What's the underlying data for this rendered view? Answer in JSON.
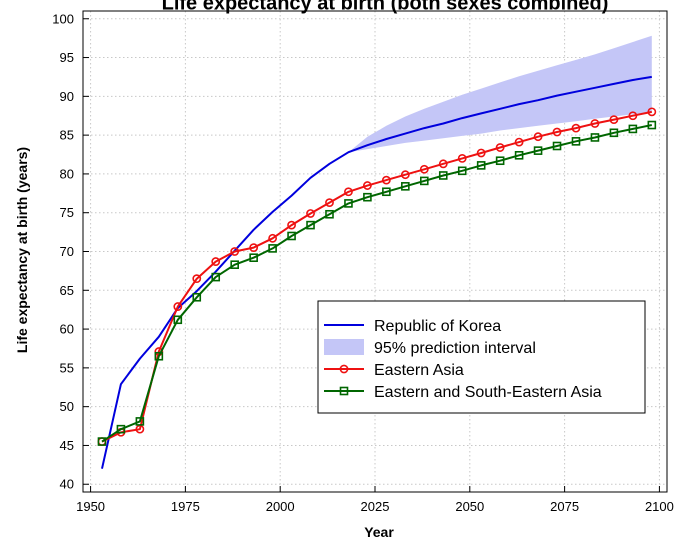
{
  "chart_data": {
    "type": "line",
    "title": "Life expectancy at birth (both sexes combined)",
    "xlabel": "Year",
    "ylabel": "Life expectancy at birth (years)",
    "xlim": [
      1948,
      2102
    ],
    "ylim": [
      39,
      101
    ],
    "xticks": [
      1950,
      1975,
      2000,
      2025,
      2050,
      2075,
      2100
    ],
    "yticks": [
      40,
      45,
      50,
      55,
      60,
      65,
      70,
      75,
      80,
      85,
      90,
      95,
      100
    ],
    "grid": true,
    "legend_position": "lower-right",
    "colors": {
      "korea": "#0000dd",
      "interval": "#c4c6f7",
      "eastern_asia": "#ee1111",
      "es_asia": "#006600"
    },
    "prediction_interval": {
      "name": "95% prediction interval",
      "x": [
        2018,
        2023,
        2028,
        2033,
        2038,
        2043,
        2048,
        2053,
        2058,
        2063,
        2068,
        2073,
        2078,
        2083,
        2088,
        2093,
        2098
      ],
      "lower": [
        82.8,
        83.2,
        83.6,
        84.0,
        84.3,
        84.6,
        84.9,
        85.2,
        85.6,
        85.9,
        86.2,
        86.5,
        86.8,
        87.1,
        87.4,
        87.7,
        88.0
      ],
      "upper": [
        82.8,
        84.8,
        86.2,
        87.4,
        88.4,
        89.3,
        90.2,
        91.0,
        91.8,
        92.6,
        93.3,
        94.0,
        94.7,
        95.4,
        96.2,
        97.0,
        97.8
      ]
    },
    "series": [
      {
        "name": "Republic of Korea",
        "key": "korea",
        "marker": "none",
        "x": [
          1953,
          1958,
          1963,
          1968,
          1973,
          1978,
          1983,
          1988,
          1993,
          1998,
          2003,
          2008,
          2013,
          2018,
          2023,
          2028,
          2033,
          2038,
          2043,
          2048,
          2053,
          2058,
          2063,
          2068,
          2073,
          2078,
          2083,
          2088,
          2093,
          2098
        ],
        "y": [
          42.0,
          52.9,
          56.2,
          59.0,
          62.7,
          64.9,
          67.4,
          70.1,
          72.8,
          75.1,
          77.2,
          79.5,
          81.3,
          82.8,
          83.7,
          84.5,
          85.2,
          85.9,
          86.5,
          87.2,
          87.8,
          88.4,
          89.0,
          89.5,
          90.1,
          90.6,
          91.1,
          91.6,
          92.1,
          92.5
        ]
      },
      {
        "name": "Eastern Asia",
        "key": "eastern_asia",
        "marker": "circle",
        "x": [
          1953,
          1958,
          1963,
          1968,
          1973,
          1978,
          1983,
          1988,
          1993,
          1998,
          2003,
          2008,
          2013,
          2018,
          2023,
          2028,
          2033,
          2038,
          2043,
          2048,
          2053,
          2058,
          2063,
          2068,
          2073,
          2078,
          2083,
          2088,
          2093,
          2098
        ],
        "y": [
          45.5,
          46.7,
          47.1,
          57.1,
          62.9,
          66.5,
          68.7,
          70.0,
          70.5,
          71.7,
          73.4,
          74.9,
          76.3,
          77.7,
          78.5,
          79.2,
          79.9,
          80.6,
          81.3,
          82.0,
          82.7,
          83.4,
          84.1,
          84.8,
          85.4,
          85.9,
          86.5,
          87.0,
          87.5,
          88.0
        ]
      },
      {
        "name": "Eastern and South-Eastern Asia",
        "key": "es_asia",
        "marker": "square",
        "x": [
          1953,
          1958,
          1963,
          1968,
          1973,
          1978,
          1983,
          1988,
          1993,
          1998,
          2003,
          2008,
          2013,
          2018,
          2023,
          2028,
          2033,
          2038,
          2043,
          2048,
          2053,
          2058,
          2063,
          2068,
          2073,
          2078,
          2083,
          2088,
          2093,
          2098
        ],
        "y": [
          45.5,
          47.1,
          48.1,
          56.5,
          61.2,
          64.1,
          66.7,
          68.3,
          69.2,
          70.4,
          72.0,
          73.4,
          74.8,
          76.2,
          77.0,
          77.7,
          78.4,
          79.1,
          79.8,
          80.4,
          81.1,
          81.7,
          82.4,
          83.0,
          83.6,
          84.2,
          84.7,
          85.3,
          85.8,
          86.3
        ]
      }
    ],
    "legend": [
      {
        "label": "Republic of Korea",
        "key": "korea",
        "kind": "line"
      },
      {
        "label": "95% prediction interval",
        "key": "interval",
        "kind": "band"
      },
      {
        "label": "Eastern Asia",
        "key": "eastern_asia",
        "kind": "circle"
      },
      {
        "label": "Eastern and South-Eastern Asia",
        "key": "es_asia",
        "kind": "square"
      }
    ]
  }
}
